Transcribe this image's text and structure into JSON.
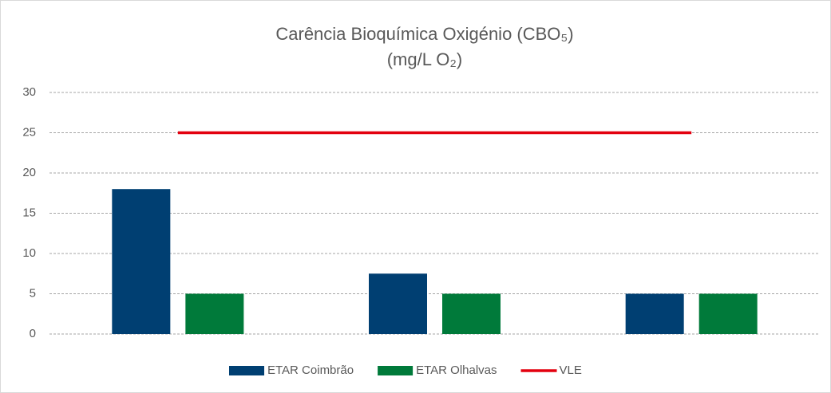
{
  "chart_data": {
    "type": "bar",
    "title": "Carência Bioquímica Oxigénio (CBO₅)",
    "subtitle": "(mg/L O₂)",
    "categories": [
      null,
      null,
      null
    ],
    "series": [
      {
        "name": "ETAR Coimbrão",
        "color": "#003f72",
        "values": [
          18,
          7.5,
          5
        ]
      },
      {
        "name": "ETAR Olhalvas",
        "color": "#007a3a",
        "values": [
          5,
          5,
          5
        ]
      },
      {
        "name": "VLE",
        "color": "#e3000f",
        "type": "line",
        "values": [
          25,
          25,
          25
        ]
      }
    ],
    "ylim": [
      0,
      30
    ],
    "yticks": [
      0,
      5,
      10,
      15,
      20,
      25,
      30
    ],
    "grid": true,
    "legend": "bottom"
  }
}
